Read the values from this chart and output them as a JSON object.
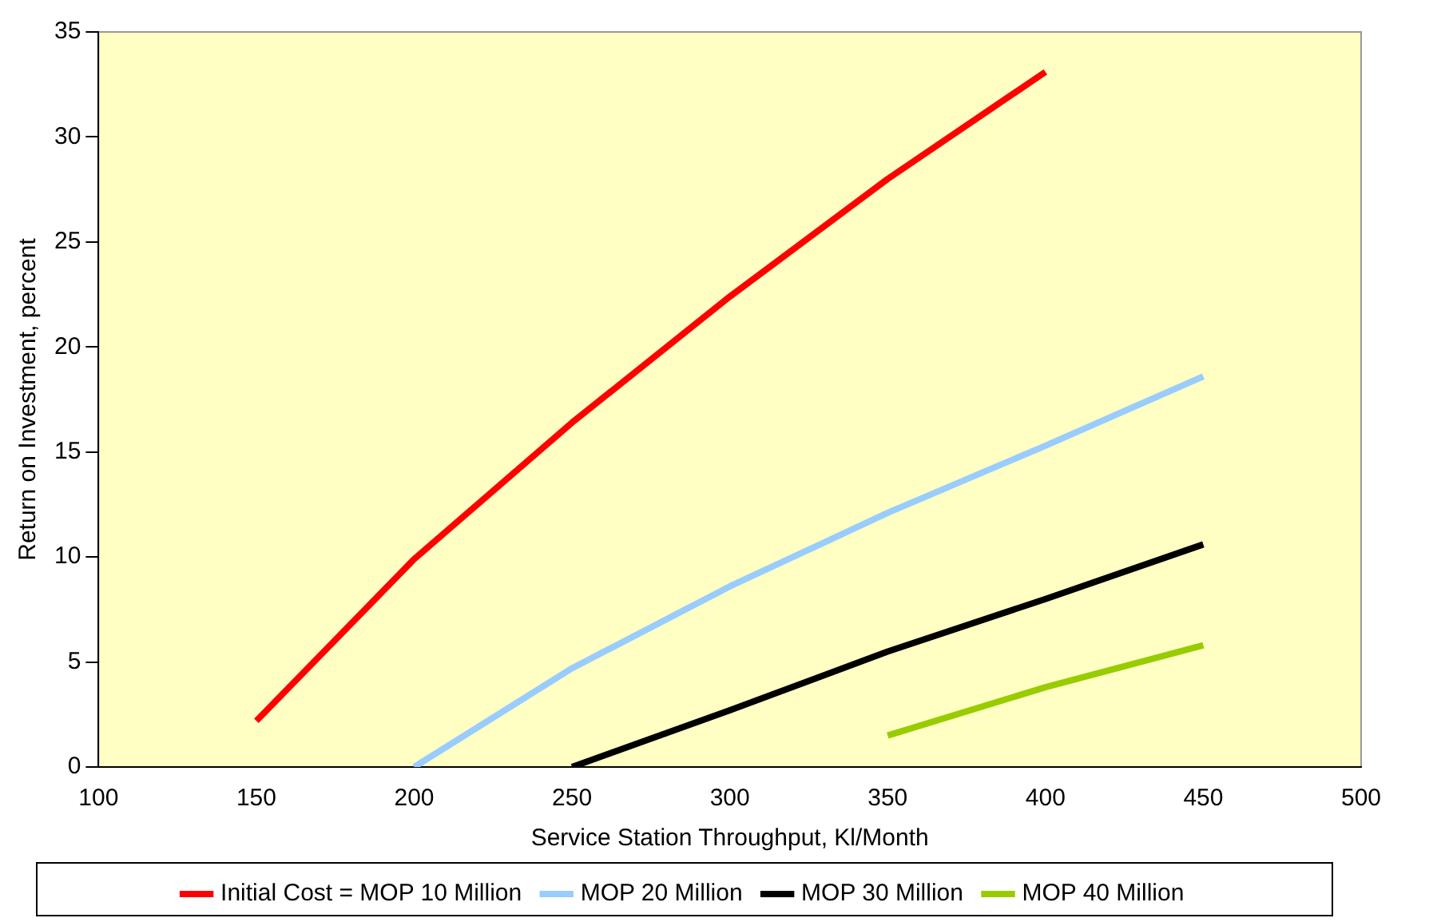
{
  "chart_data": {
    "type": "line",
    "xlabel": "Service Station Throughput, Kl/Month",
    "ylabel": "Return on Investment, percent",
    "xlim": [
      100,
      500
    ],
    "xticks": [
      100,
      150,
      200,
      250,
      300,
      350,
      400,
      450,
      500
    ],
    "ylim": [
      0,
      35
    ],
    "yticks": [
      0,
      5,
      10,
      15,
      20,
      25,
      30,
      35
    ],
    "grid": false,
    "legend": "bottom",
    "marker": "none",
    "line_style": "solid",
    "series": [
      {
        "name": "Initial Cost = MOP 10 Million",
        "color": "#ff0000",
        "x": [
          150,
          200,
          250,
          300,
          350,
          400
        ],
        "values": [
          2.2,
          9.9,
          16.4,
          22.4,
          28,
          33.1
        ]
      },
      {
        "name": "MOP 20 Million",
        "color": "#99ccff",
        "x": [
          200,
          250,
          300,
          350,
          400,
          450
        ],
        "values": [
          0,
          4.7,
          8.6,
          12.1,
          15.3,
          18.6
        ]
      },
      {
        "name": "MOP 30 Million",
        "color": "#000000",
        "x": [
          250,
          300,
          350,
          400,
          450
        ],
        "values": [
          0,
          2.7,
          5.5,
          8,
          10.6
        ]
      },
      {
        "name": "MOP 40 Million",
        "color": "#99cc00",
        "x": [
          350,
          400,
          450
        ],
        "values": [
          1.5,
          3.8,
          5.8
        ]
      }
    ]
  }
}
